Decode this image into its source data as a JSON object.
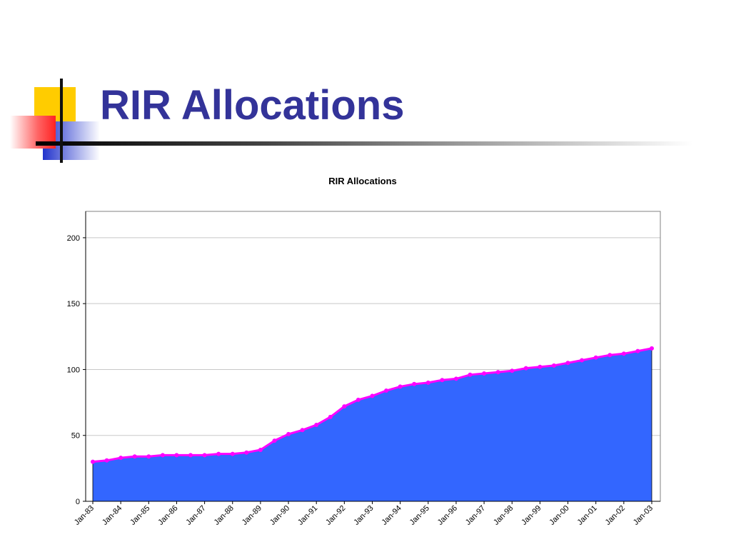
{
  "slide": {
    "title": "RIR Allocations"
  },
  "colors": {
    "title": "#333399",
    "area_fill": "#3366ff",
    "marker": "#ff00ff",
    "deco_yellow": "#ffcc00",
    "deco_red": "#ff3333",
    "deco_blue": "#3333cc"
  },
  "chart_data": {
    "type": "area",
    "title": "RIR Allocations",
    "xlabel": "",
    "ylabel": "",
    "ylim": [
      0,
      220
    ],
    "yticks": [
      0,
      50,
      100,
      150,
      200
    ],
    "grid": true,
    "legend": "none",
    "x_tick_labels": [
      "Jan-83",
      "Jan-84",
      "Jan-85",
      "Jan-86",
      "Jan-87",
      "Jan-88",
      "Jan-89",
      "Jan-90",
      "Jan-91",
      "Jan-92",
      "Jan-93",
      "Jan-94",
      "Jan-95",
      "Jan-96",
      "Jan-97",
      "Jan-98",
      "Jan-99",
      "Jan-00",
      "Jan-01",
      "Jan-02",
      "Jan-03"
    ],
    "x_start": "Jan-83",
    "x_end": "Jan-03",
    "series": [
      {
        "points": [
          [
            "Jan-83",
            30
          ],
          [
            "Jul-83",
            31
          ],
          [
            "Jan-84",
            33
          ],
          [
            "Jul-84",
            34
          ],
          [
            "Jan-85",
            34
          ],
          [
            "Jul-85",
            35
          ],
          [
            "Jan-86",
            35
          ],
          [
            "Jul-86",
            35
          ],
          [
            "Jan-87",
            35
          ],
          [
            "Jul-87",
            36
          ],
          [
            "Jan-88",
            36
          ],
          [
            "Jul-88",
            37
          ],
          [
            "Jan-89",
            39
          ],
          [
            "Jul-89",
            46
          ],
          [
            "Jan-90",
            51
          ],
          [
            "Jul-90",
            54
          ],
          [
            "Jan-91",
            58
          ],
          [
            "Jul-91",
            64
          ],
          [
            "Jan-92",
            72
          ],
          [
            "Jul-92",
            77
          ],
          [
            "Jan-93",
            80
          ],
          [
            "Jul-93",
            84
          ],
          [
            "Jan-94",
            87
          ],
          [
            "Jul-94",
            89
          ],
          [
            "Jan-95",
            90
          ],
          [
            "Jul-95",
            92
          ],
          [
            "Jan-96",
            93
          ],
          [
            "Jul-96",
            96
          ],
          [
            "Jan-97",
            97
          ],
          [
            "Jul-97",
            98
          ],
          [
            "Jan-98",
            99
          ],
          [
            "Jul-98",
            101
          ],
          [
            "Jan-99",
            102
          ],
          [
            "Jul-99",
            103
          ],
          [
            "Jan-00",
            105
          ],
          [
            "Jul-00",
            107
          ],
          [
            "Jan-01",
            109
          ],
          [
            "Jul-01",
            111
          ],
          [
            "Jan-02",
            112
          ],
          [
            "Jul-02",
            114
          ],
          [
            "Jan-03",
            116
          ]
        ]
      }
    ]
  }
}
